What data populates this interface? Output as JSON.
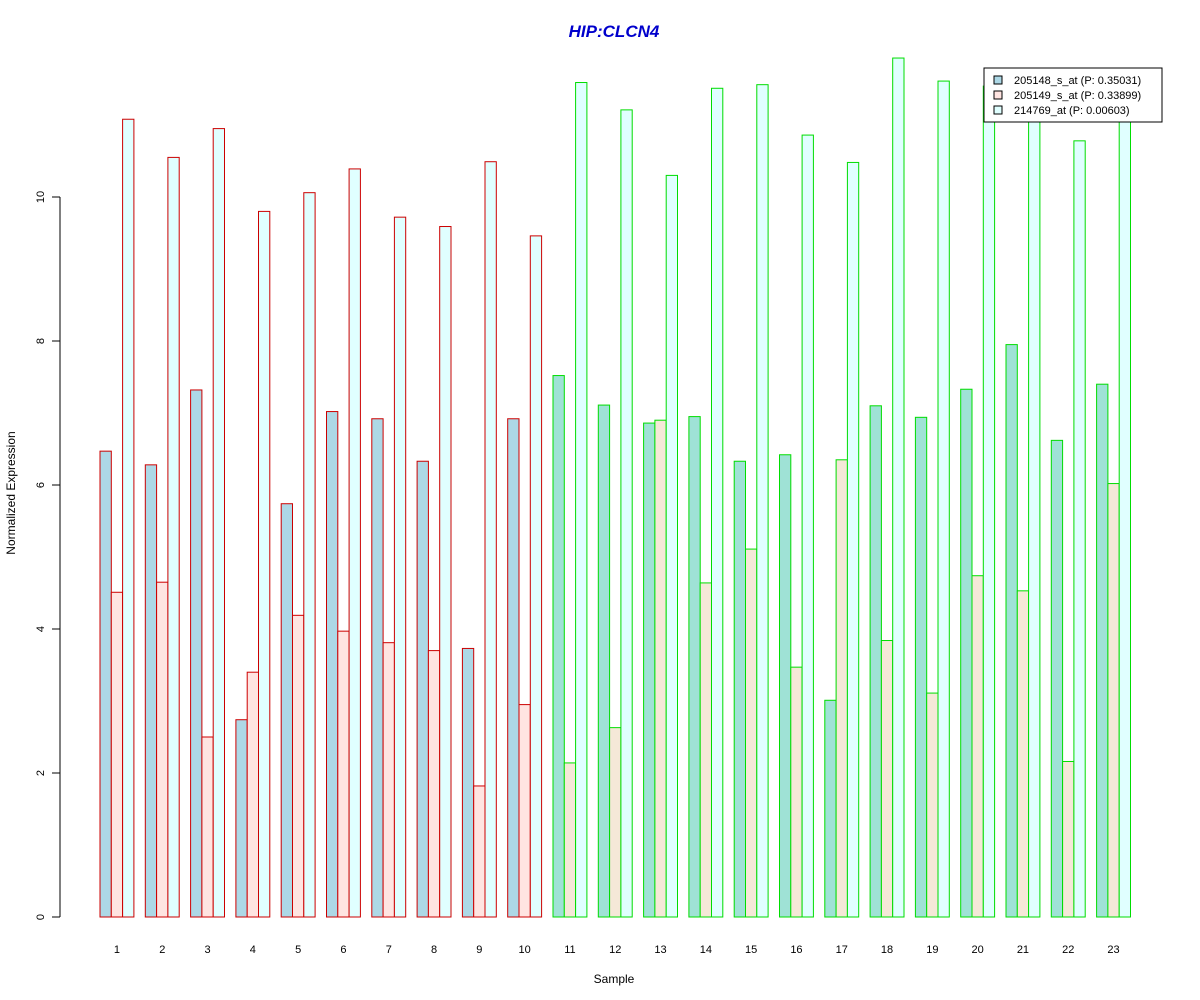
{
  "chart_data": {
    "type": "bar",
    "title": "HIP:CLCN4",
    "xlabel": "Sample",
    "ylabel": "Normalized Expression",
    "ylim": [
      0,
      12
    ],
    "yticks": [
      0,
      2,
      4,
      6,
      8,
      10
    ],
    "grid": false,
    "legend_position": "top-right",
    "categories": [
      "1",
      "2",
      "3",
      "4",
      "5",
      "6",
      "7",
      "8",
      "9",
      "10",
      "11",
      "12",
      "13",
      "14",
      "15",
      "16",
      "17",
      "18",
      "19",
      "20",
      "21",
      "22",
      "23"
    ],
    "series": [
      {
        "name": "205148_s_at (P: 0.35031)",
        "values": [
          6.47,
          6.28,
          7.32,
          2.74,
          5.74,
          7.02,
          6.92,
          6.33,
          3.73,
          6.92,
          7.52,
          7.11,
          6.86,
          6.95,
          6.33,
          6.42,
          3.01,
          7.1,
          6.94,
          7.33,
          7.95,
          6.62,
          7.4
        ]
      },
      {
        "name": "205149_s_at (P: 0.33899)",
        "values": [
          4.51,
          4.65,
          2.5,
          3.4,
          4.19,
          3.97,
          3.81,
          3.7,
          1.82,
          2.95,
          2.14,
          2.63,
          6.9,
          4.64,
          5.11,
          3.47,
          6.35,
          3.84,
          3.11,
          4.74,
          4.53,
          2.16,
          6.02
        ]
      },
      {
        "name": "214769_at (P: 0.00603)",
        "values": [
          11.08,
          10.55,
          10.95,
          9.8,
          10.06,
          10.39,
          9.72,
          9.59,
          10.49,
          9.46,
          11.59,
          11.21,
          10.3,
          11.51,
          11.56,
          10.86,
          10.48,
          11.93,
          11.61,
          11.54,
          11.3,
          10.78,
          11.2
        ]
      }
    ],
    "group_styles": {
      "group1": {
        "categories": [
          1,
          2,
          3,
          4,
          5,
          6,
          7,
          8,
          9,
          10
        ],
        "border_color": "#cc0000",
        "fills": [
          "#add8e6",
          "#ffe4e1",
          "#e0ffff"
        ]
      },
      "group2": {
        "categories": [
          11,
          12,
          13,
          14,
          15,
          16,
          17,
          18,
          19,
          20,
          21,
          22,
          23
        ],
        "border_color": "#00dd00",
        "fills": [
          "#9fe2d6",
          "#f5e8d8",
          "#e0ffff"
        ]
      }
    },
    "title_color": "#0000cc",
    "legend_fills": [
      "#add8e6",
      "#ffe4e1",
      "#e0ffff"
    ]
  }
}
